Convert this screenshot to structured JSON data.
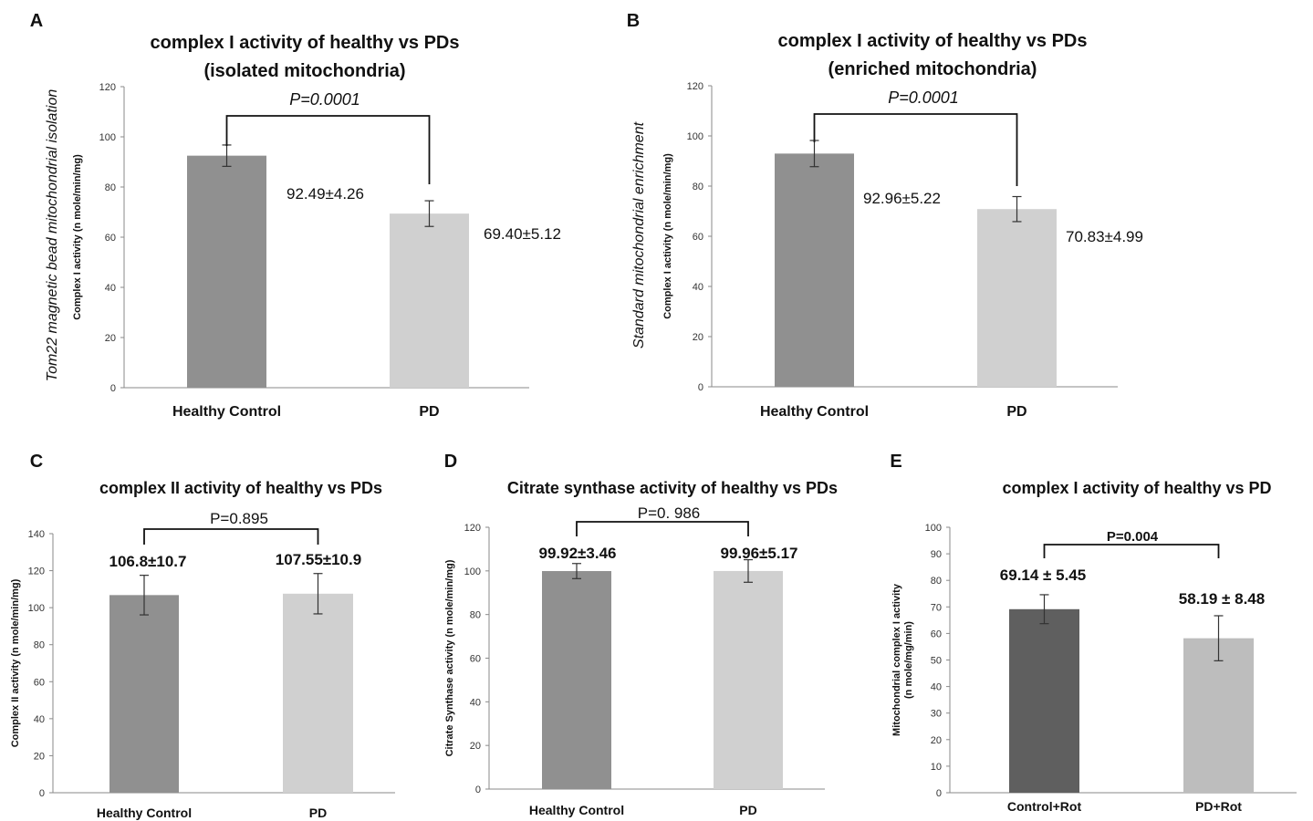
{
  "chart_data": [
    {
      "panel": "A",
      "type": "bar",
      "title_lines": [
        "complex I activity of healthy vs PDs",
        "(isolated mitochondria)"
      ],
      "side_label": "Tom22 magnetic bead mitochondrial isolation",
      "ylabel": "Complex I activity (n mole/min/mg)",
      "ylim": [
        0,
        120
      ],
      "yticks": [
        0,
        20,
        40,
        60,
        80,
        100,
        120
      ],
      "categories": [
        "Healthy Control",
        "PD"
      ],
      "values": [
        92.49,
        69.4
      ],
      "errors": [
        4.26,
        5.12
      ],
      "value_labels": [
        "92.49±4.26",
        "69.40±5.12"
      ],
      "colors": [
        "#909090",
        "#d0d0d0"
      ],
      "pvalue": "P=0.0001"
    },
    {
      "panel": "B",
      "type": "bar",
      "title_lines": [
        "complex I activity of healthy vs PDs",
        "(enriched mitochondria)"
      ],
      "side_label": "Standard mitochondrial enrichment",
      "ylabel": "Complex I activity (n mole/min/mg)",
      "ylim": [
        0,
        120
      ],
      "yticks": [
        0,
        20,
        40,
        60,
        80,
        100,
        120
      ],
      "categories": [
        "Healthy Control",
        "PD"
      ],
      "values": [
        92.96,
        70.83
      ],
      "errors": [
        5.22,
        4.99
      ],
      "value_labels": [
        "92.96±5.22",
        "70.83±4.99"
      ],
      "colors": [
        "#909090",
        "#d0d0d0"
      ],
      "pvalue": "P=0.0001"
    },
    {
      "panel": "C",
      "type": "bar",
      "title_lines": [
        "complex II activity of healthy vs PDs"
      ],
      "ylabel": "Complex II activity (n mole/min/mg)",
      "ylim": [
        0,
        140
      ],
      "yticks": [
        0,
        20,
        40,
        60,
        80,
        100,
        120,
        140
      ],
      "categories": [
        "Healthy Control",
        "PD"
      ],
      "values": [
        106.8,
        107.55
      ],
      "errors": [
        10.7,
        10.9
      ],
      "value_labels": [
        "106.8±10.7",
        "107.55±10.9"
      ],
      "colors": [
        "#909090",
        "#d0d0d0"
      ],
      "pvalue": "P=0.895"
    },
    {
      "panel": "D",
      "type": "bar",
      "title_lines": [
        "Citrate synthase activity of healthy vs PDs"
      ],
      "ylabel": "Citrate Synthase activity (n mole/min/mg)",
      "ylim": [
        0,
        120
      ],
      "yticks": [
        0,
        20,
        40,
        60,
        80,
        100,
        120
      ],
      "categories": [
        "Healthy Control",
        "PD"
      ],
      "values": [
        99.92,
        99.96
      ],
      "errors": [
        3.46,
        5.17
      ],
      "value_labels": [
        "99.92±3.46",
        "99.96±5.17"
      ],
      "colors": [
        "#909090",
        "#d0d0d0"
      ],
      "pvalue": "P=0. 986"
    },
    {
      "panel": "E",
      "type": "bar",
      "title_lines": [
        "complex I activity of healthy vs PD"
      ],
      "ylabel_lines": [
        "Mitochondrial complex I activity",
        "(n mole/mg/min)"
      ],
      "ylim": [
        0,
        100
      ],
      "yticks": [
        0,
        10,
        20,
        30,
        40,
        50,
        60,
        70,
        80,
        90,
        100
      ],
      "categories": [
        "Control+Rot",
        "PD+Rot"
      ],
      "values": [
        69.14,
        58.19
      ],
      "errors": [
        5.45,
        8.48
      ],
      "value_labels": [
        "69.14 ± 5.45",
        "58.19 ± 8.48"
      ],
      "colors": [
        "#5f5f5f",
        "#bdbdbd"
      ],
      "pvalue": "P=0.004"
    }
  ]
}
